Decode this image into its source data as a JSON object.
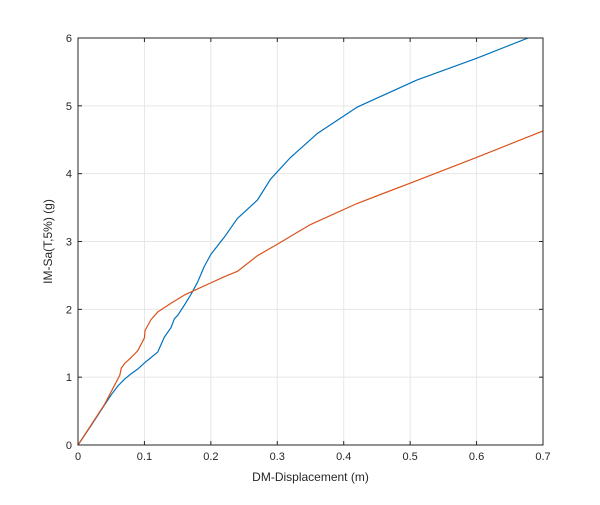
{
  "chart_data": {
    "type": "line",
    "title": "",
    "xlabel": "DM-Displacement (m)",
    "ylabel": "IM-Sa(T,5%) (g)",
    "xlim": [
      0,
      0.7
    ],
    "ylim": [
      0,
      6
    ],
    "xticks": [
      0,
      0.1,
      0.2,
      0.3,
      0.4,
      0.5,
      0.6,
      0.7
    ],
    "xtick_labels": [
      "0",
      "0.1",
      "0.2",
      "0.3",
      "0.4",
      "0.5",
      "0.6",
      "0.7"
    ],
    "yticks": [
      0,
      1,
      2,
      3,
      4,
      5,
      6
    ],
    "ytick_labels": [
      "0",
      "1",
      "2",
      "3",
      "4",
      "5",
      "6"
    ],
    "grid": true,
    "legend": null,
    "series": [
      {
        "name": "series-1",
        "color": "#0072BD",
        "x": [
          0,
          0.02,
          0.04,
          0.05,
          0.06,
          0.07,
          0.08,
          0.09,
          0.1,
          0.11,
          0.12,
          0.13,
          0.14,
          0.145,
          0.15,
          0.16,
          0.17,
          0.18,
          0.19,
          0.2,
          0.22,
          0.24,
          0.27,
          0.29,
          0.32,
          0.36,
          0.42,
          0.51,
          0.6,
          0.68
        ],
        "y": [
          0,
          0.29,
          0.59,
          0.74,
          0.87,
          0.97,
          1.05,
          1.12,
          1.21,
          1.29,
          1.37,
          1.59,
          1.73,
          1.86,
          1.91,
          2.06,
          2.22,
          2.4,
          2.63,
          2.81,
          3.06,
          3.34,
          3.61,
          3.92,
          4.24,
          4.59,
          4.98,
          5.38,
          5.7,
          6.01
        ]
      },
      {
        "name": "series-2",
        "color": "#D95319",
        "x": [
          0,
          0.02,
          0.04,
          0.055,
          0.063,
          0.065,
          0.07,
          0.08,
          0.09,
          0.1,
          0.101,
          0.11,
          0.12,
          0.14,
          0.16,
          0.18,
          0.2,
          0.22,
          0.24,
          0.27,
          0.3,
          0.35,
          0.42,
          0.5,
          0.6,
          0.7
        ],
        "y": [
          0,
          0.3,
          0.6,
          0.88,
          1.03,
          1.13,
          1.2,
          1.29,
          1.39,
          1.58,
          1.69,
          1.85,
          1.96,
          2.09,
          2.21,
          2.3,
          2.39,
          2.48,
          2.56,
          2.79,
          2.96,
          3.25,
          3.56,
          3.86,
          4.24,
          4.63
        ]
      }
    ]
  }
}
